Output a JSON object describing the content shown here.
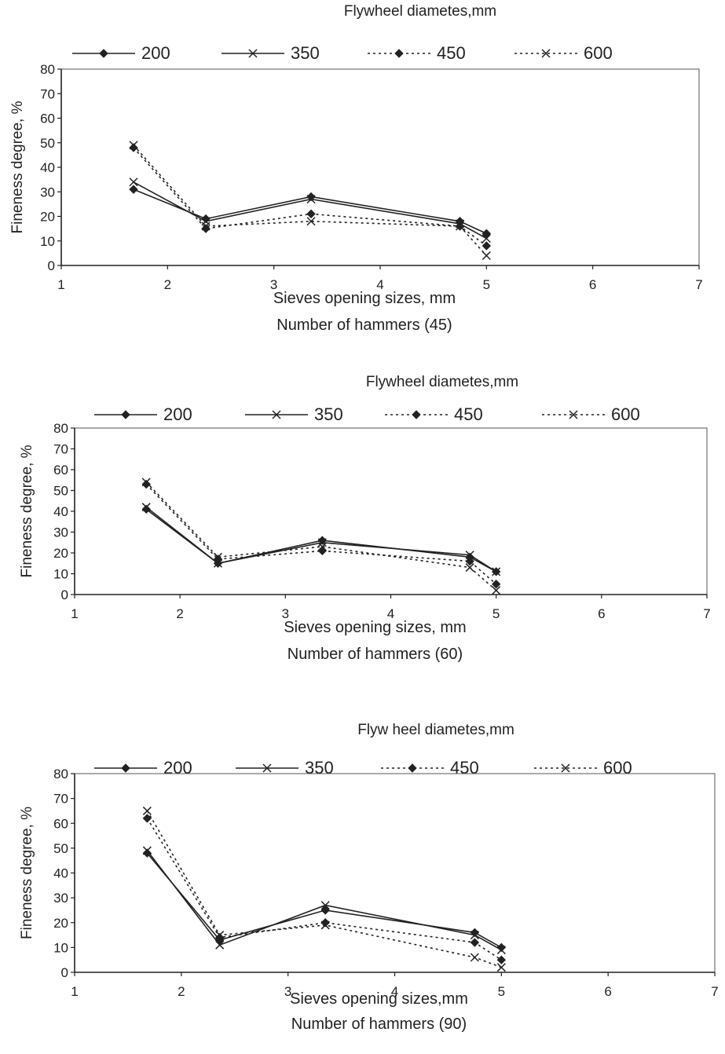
{
  "chart_data": [
    {
      "type": "line",
      "legend_title": "Flywheel diametes,mm",
      "ylabel": "Fineness degree, %",
      "xlabel": "Sieves opening sizes, mm",
      "subtitle": "Number of hammers (45)",
      "xlim": [
        1,
        7
      ],
      "ylim": [
        0,
        80
      ],
      "x_ticks": [
        1,
        2,
        3,
        4,
        5,
        6,
        7
      ],
      "y_ticks": [
        0,
        10,
        20,
        30,
        40,
        50,
        60,
        70,
        80
      ],
      "grid": false,
      "legend_position": "top",
      "x": [
        1.68,
        2.36,
        3.35,
        4.75,
        5.0
      ],
      "series": [
        {
          "name": "200",
          "marker": "diamond",
          "dash": "solid",
          "values": [
            31,
            19,
            28,
            18,
            13
          ]
        },
        {
          "name": "350",
          "marker": "x",
          "dash": "solid",
          "values": [
            34,
            18,
            27,
            17,
            11
          ]
        },
        {
          "name": "450",
          "marker": "diamond",
          "dash": "dotted",
          "values": [
            48,
            15,
            21,
            16,
            8
          ]
        },
        {
          "name": "600",
          "marker": "x",
          "dash": "dotted",
          "values": [
            49,
            16,
            18,
            16,
            4
          ]
        }
      ]
    },
    {
      "type": "line",
      "legend_title": "Flywheel diametes,mm",
      "ylabel": "Fineness degree, %",
      "xlabel": "Sieves opening sizes, mm",
      "subtitle": "Number of hammers (60)",
      "xlim": [
        1,
        7
      ],
      "ylim": [
        0,
        80
      ],
      "x_ticks": [
        1,
        2,
        3,
        4,
        5,
        6,
        7
      ],
      "y_ticks": [
        0,
        10,
        20,
        30,
        40,
        50,
        60,
        70,
        80
      ],
      "grid": false,
      "legend_position": "top",
      "x": [
        1.68,
        2.36,
        3.35,
        4.75,
        5.0
      ],
      "series": [
        {
          "name": "200",
          "marker": "diamond",
          "dash": "solid",
          "values": [
            41,
            15,
            26,
            18,
            11
          ]
        },
        {
          "name": "350",
          "marker": "x",
          "dash": "solid",
          "values": [
            42,
            15,
            25,
            19,
            11
          ]
        },
        {
          "name": "450",
          "marker": "diamond",
          "dash": "dotted",
          "values": [
            53,
            17,
            21,
            16,
            5
          ]
        },
        {
          "name": "600",
          "marker": "x",
          "dash": "dotted",
          "values": [
            54,
            18,
            23,
            13,
            2
          ]
        }
      ]
    },
    {
      "type": "line",
      "legend_title": "Flyw heel diametes,mm",
      "ylabel": "Fineness degree, %",
      "xlabel": "Sieves opening sizes,mm",
      "subtitle": "Number of hammers (90)",
      "xlim": [
        1,
        7
      ],
      "ylim": [
        0,
        80
      ],
      "x_ticks": [
        1,
        2,
        3,
        4,
        5,
        6,
        7
      ],
      "y_ticks": [
        0,
        10,
        20,
        30,
        40,
        50,
        60,
        70,
        80
      ],
      "grid": false,
      "legend_position": "top",
      "x": [
        1.68,
        2.36,
        3.35,
        4.75,
        5.0
      ],
      "series": [
        {
          "name": "200",
          "marker": "diamond",
          "dash": "solid",
          "values": [
            48,
            13,
            25,
            16,
            10
          ]
        },
        {
          "name": "350",
          "marker": "x",
          "dash": "solid",
          "values": [
            49,
            11,
            27,
            15,
            9
          ]
        },
        {
          "name": "450",
          "marker": "diamond",
          "dash": "dotted",
          "values": [
            62,
            14,
            20,
            12,
            5
          ]
        },
        {
          "name": "600",
          "marker": "x",
          "dash": "dotted",
          "values": [
            65,
            15,
            19,
            6,
            2
          ]
        }
      ]
    }
  ]
}
